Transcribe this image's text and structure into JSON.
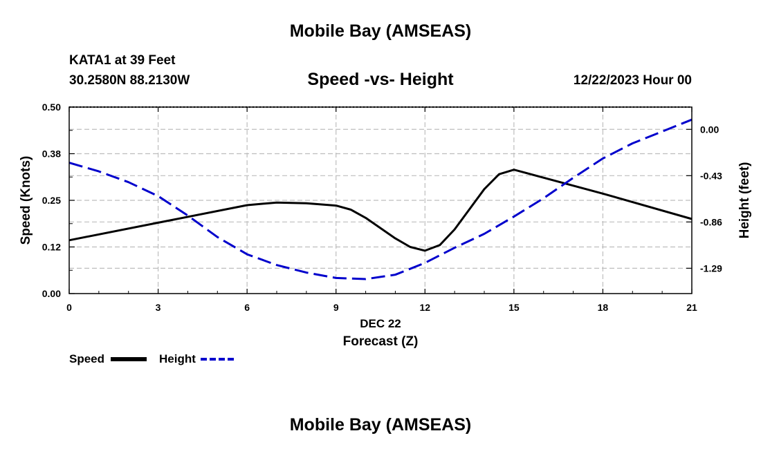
{
  "header": {
    "title": "Mobile Bay (AMSEAS)",
    "station": "KATA1 at 39 Feet",
    "coords": "30.2580N  88.2130W",
    "chart_title": "Speed -vs- Height",
    "datetime": "12/22/2023 Hour 00"
  },
  "footer": {
    "title": "Mobile Bay (AMSEAS)"
  },
  "legend": {
    "speed_label": "Speed",
    "height_label": "Height"
  },
  "colors": {
    "speed": "#000000",
    "height": "#0000cc",
    "grid": "#bdbdbd"
  },
  "chart_data": {
    "type": "line",
    "title": "Speed -vs- Height",
    "xlabel": "Forecast (Z)",
    "xsublabel": "DEC 22",
    "ylabel": "Speed (Knots)",
    "y2label": "Height (feet)",
    "xlim": [
      0,
      21
    ],
    "ylim": [
      0,
      0.5
    ],
    "y2lim": [
      -1.525,
      0.207
    ],
    "xticks": [
      0,
      3,
      6,
      9,
      12,
      15,
      18,
      21
    ],
    "xtick_labels": [
      "0",
      "3",
      "6",
      "9",
      "12",
      "15",
      "18",
      "21"
    ],
    "yticks": [
      0,
      0.125,
      0.25,
      0.375,
      0.5
    ],
    "ytick_labels": [
      "0.00",
      "0.12",
      "0.25",
      "0.38",
      "0.50"
    ],
    "y2ticks": [
      0.0,
      -0.43,
      -0.86,
      -1.29
    ],
    "y2tick_labels": [
      "0.00",
      "-0.43",
      "-0.86",
      "-1.29"
    ],
    "grid": true,
    "series": [
      {
        "name": "Speed",
        "axis": "left",
        "style": "solid",
        "x": [
          0,
          3,
          6,
          7,
          8,
          9,
          9.5,
          10,
          11,
          11.5,
          12,
          12.5,
          13,
          14,
          14.5,
          15,
          18,
          21
        ],
        "values": [
          0.143,
          0.19,
          0.237,
          0.244,
          0.242,
          0.236,
          0.225,
          0.203,
          0.148,
          0.125,
          0.115,
          0.13,
          0.172,
          0.28,
          0.32,
          0.332,
          0.268,
          0.2
        ]
      },
      {
        "name": "Height",
        "axis": "right",
        "style": "dashed",
        "x": [
          0,
          1,
          2,
          3,
          4,
          5,
          6,
          7,
          8,
          9,
          10,
          11,
          12,
          13,
          14,
          15,
          16,
          17,
          18,
          19,
          20,
          21
        ],
        "values": [
          -0.31,
          -0.39,
          -0.49,
          -0.62,
          -0.8,
          -1.0,
          -1.16,
          -1.26,
          -1.33,
          -1.38,
          -1.39,
          -1.35,
          -1.24,
          -1.1,
          -0.97,
          -0.81,
          -0.64,
          -0.45,
          -0.27,
          -0.13,
          -0.02,
          0.09
        ]
      }
    ]
  }
}
